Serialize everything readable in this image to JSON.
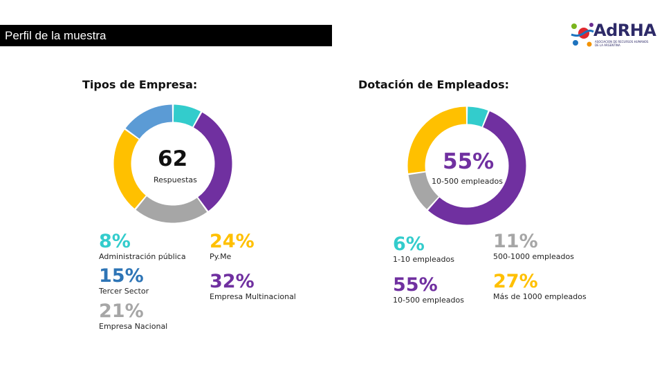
{
  "header": {
    "title": "Perfil de la muestra"
  },
  "logo": {
    "name": "AdRHA",
    "subtitle": "ASOCIACION DE RECURSOS HUMANOS DE LA ARGENTINA"
  },
  "colors": {
    "teal": "#33cccc",
    "purple": "#7030a0",
    "gray": "#a6a6a6",
    "yellow": "#ffc000",
    "blue": "#5b9bd5",
    "blue_text": "#2e75b6",
    "gray_text": "#a6a6a6"
  },
  "chart_data": [
    {
      "type": "pie",
      "donut": true,
      "title": "Tipos de Empresa:",
      "center_value": "62",
      "center_label": "Respuestas",
      "categories": [
        "Administración pública",
        "Empresa Multinacional",
        "Empresa Nacional",
        "Py.Me",
        "Tercer Sector"
      ],
      "values": [
        8,
        32,
        21,
        24,
        15
      ],
      "value_labels": [
        "8%",
        "32%",
        "21%",
        "24%",
        "15%"
      ],
      "colors": [
        "#33cccc",
        "#7030a0",
        "#a6a6a6",
        "#ffc000",
        "#5b9bd5"
      ]
    },
    {
      "type": "pie",
      "donut": true,
      "title": "Dotación de Empleados:",
      "center_value": "55%",
      "center_label": "10-500 empleados",
      "categories": [
        "1-10 empleados",
        "10-500 empleados",
        "500-1000 empleados",
        "Más de 1000 empleados"
      ],
      "values": [
        6,
        55,
        11,
        27
      ],
      "value_labels": [
        "6%",
        "55%",
        "11%",
        "27%"
      ],
      "colors": [
        "#33cccc",
        "#7030a0",
        "#a6a6a6",
        "#ffc000"
      ]
    }
  ]
}
